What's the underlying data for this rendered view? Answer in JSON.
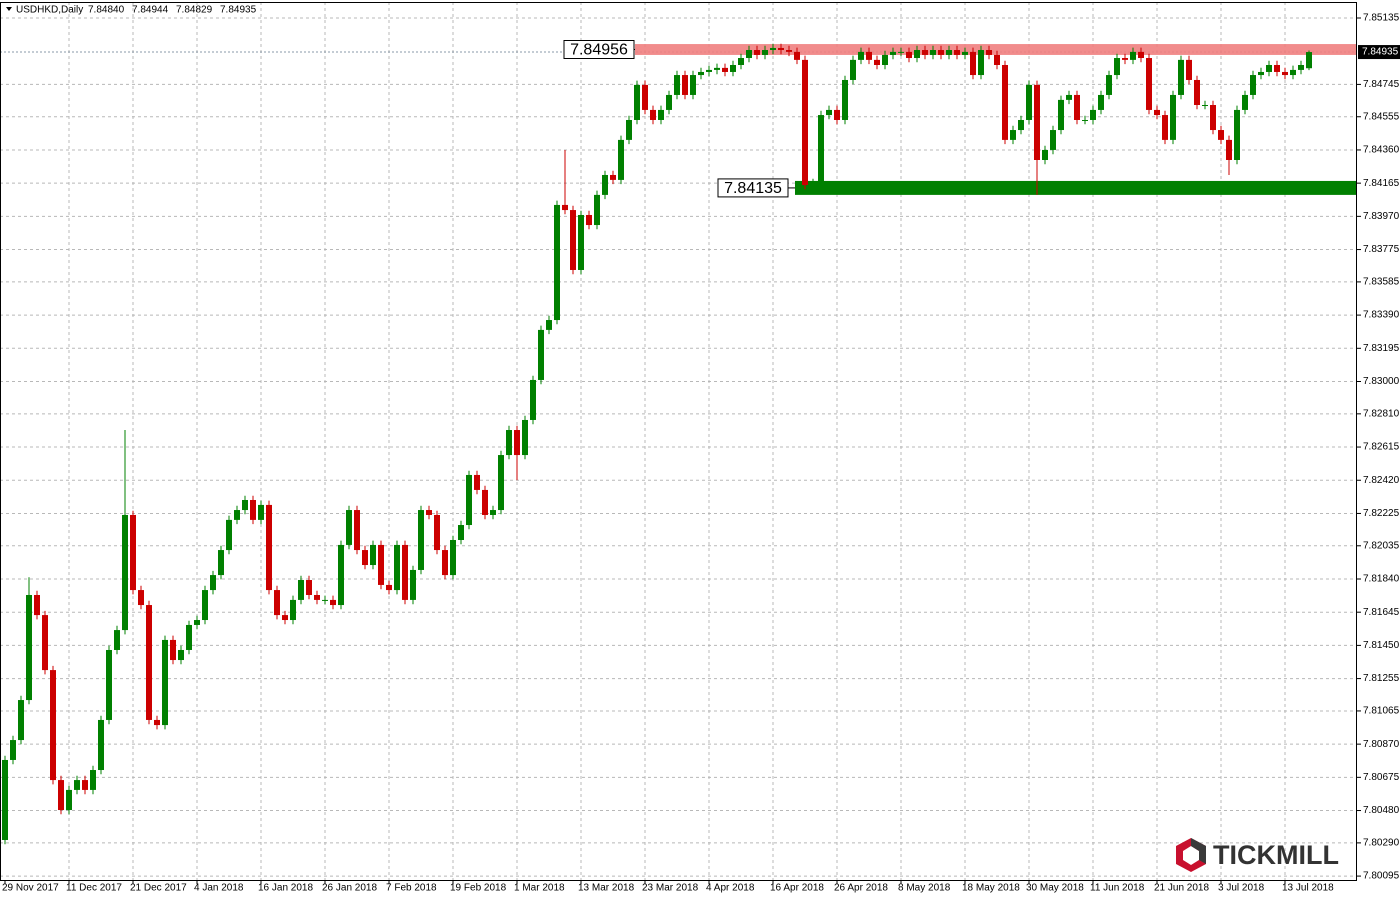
{
  "chart_data": {
    "type": "candlestick",
    "title": "USDHKD,Daily",
    "ohlc_labels": [
      "7.84840",
      "7.84944",
      "7.84829",
      "7.84935"
    ],
    "watermark": "TICKMILL",
    "up_color": "#008000",
    "down_color": "#cc0000",
    "grid": true,
    "ylim": [
      7.80072,
      7.85229
    ],
    "yticks": [
      7.85135,
      7.84745,
      7.84555,
      {
        "value": 7.8436,
        "label": "7.84360"
      },
      7.84165,
      {
        "value": 7.8397,
        "label": "7.83970"
      },
      7.83775,
      7.83585,
      {
        "value": 7.8339,
        "label": "7.83390"
      },
      7.83195,
      {
        "value": 7.83,
        "label": "7.83000"
      },
      {
        "value": 7.8281,
        "label": "7.82810"
      },
      7.82615,
      {
        "value": 7.8242,
        "label": "7.82420"
      },
      7.82225,
      7.82035,
      {
        "value": 7.8184,
        "label": "7.81840"
      },
      7.81645,
      {
        "value": 7.8145,
        "label": "7.81450"
      },
      7.81255,
      7.81065,
      {
        "value": 7.8087,
        "label": "7.80870"
      },
      7.80675,
      {
        "value": 7.8048,
        "label": "7.80480"
      },
      {
        "value": 7.8029,
        "label": "7.80290"
      },
      7.80095
    ],
    "last_price": {
      "value": 7.84935,
      "label": "7.84935"
    },
    "zones": [
      {
        "label": "7.84956",
        "low": 7.84918,
        "high": 7.84982,
        "color": "#f08080"
      },
      {
        "label": "7.84135",
        "low": 7.84096,
        "high": 7.84178,
        "color": "#008000"
      }
    ],
    "categories": [
      "29 Nov 2017",
      null,
      null,
      null,
      null,
      null,
      null,
      null,
      "11 Dec 2017",
      null,
      null,
      null,
      null,
      null,
      null,
      null,
      "21 Dec 2017",
      null,
      null,
      null,
      null,
      null,
      null,
      null,
      "4 Jan 2018",
      null,
      null,
      null,
      null,
      null,
      null,
      null,
      "16 Jan 2018",
      null,
      null,
      null,
      null,
      null,
      null,
      null,
      "26 Jan 2018",
      null,
      null,
      null,
      null,
      null,
      null,
      null,
      "7 Feb 2018",
      null,
      null,
      null,
      null,
      null,
      null,
      null,
      "19 Feb 2018",
      null,
      null,
      null,
      null,
      null,
      null,
      null,
      "1 Mar 2018",
      null,
      null,
      null,
      null,
      null,
      null,
      null,
      "13 Mar 2018",
      null,
      null,
      null,
      null,
      null,
      null,
      null,
      "23 Mar 2018",
      null,
      null,
      null,
      null,
      null,
      null,
      null,
      "4 Apr 2018",
      null,
      null,
      null,
      null,
      null,
      null,
      null,
      "16 Apr 2018",
      null,
      null,
      null,
      null,
      null,
      null,
      null,
      "26 Apr 2018",
      null,
      null,
      null,
      null,
      null,
      null,
      null,
      "8 May 2018",
      null,
      null,
      null,
      null,
      null,
      null,
      null,
      "18 May 2018",
      null,
      null,
      null,
      null,
      null,
      null,
      null,
      "30 May 2018",
      null,
      null,
      null,
      null,
      null,
      null,
      null,
      "11 Jun 2018",
      null,
      null,
      null,
      null,
      null,
      null,
      null,
      "21 Jun 2018",
      null,
      null,
      null,
      null,
      null,
      null,
      null,
      "3 Jul 2018",
      null,
      null,
      null,
      null,
      null,
      null,
      null,
      "13 Jul 2018",
      null,
      null,
      null
    ],
    "open": [
      7.80307,
      7.80777,
      7.80894,
      7.81129,
      7.81746,
      7.81628,
      7.81305,
      7.80659,
      7.80483,
      7.80601,
      7.80659,
      7.80601,
      7.80718,
      7.81012,
      7.81423,
      7.8154,
      7.82216,
      7.81775,
      7.81687,
      7.81012,
      7.80982,
      7.81482,
      7.81364,
      7.81423,
      7.8157,
      7.81599,
      7.81775,
      7.81863,
      7.8201,
      7.82187,
      7.82245,
      7.82304,
      7.82187,
      7.82275,
      7.81775,
      7.81628,
      7.81599,
      7.81717,
      7.81834,
      7.81746,
      7.81717,
      7.81717,
      7.81687,
      7.8204,
      7.82245,
      7.8201,
      7.81922,
      7.8204,
      7.81805,
      7.81775,
      7.8204,
      7.81717,
      7.81893,
      7.82245,
      7.82216,
      7.8201,
      7.81863,
      7.82069,
      7.82157,
      7.82451,
      7.82363,
      7.82216,
      7.82245,
      7.82568,
      7.82715,
      7.82568,
      7.82774,
      7.83009,
      7.83303,
      7.83361,
      7.84037,
      7.84007,
      7.83655,
      7.83978,
      7.83919,
      7.84096,
      7.84213,
      7.84184,
      7.84419,
      7.84536,
      7.84742,
      7.84595,
      7.84536,
      7.84595,
      7.84683,
      7.848,
      7.84683,
      7.848,
      7.84818,
      7.8483,
      7.84842,
      7.84818,
      7.84859,
      7.849,
      7.84947,
      7.84918,
      7.84947,
      7.84959,
      7.84947,
      7.84936,
      7.84889,
      7.84154,
      7.84166,
      7.84565,
      7.84595,
      7.84536,
      7.84771,
      7.84889,
      7.84936,
      7.84889,
      7.84859,
      7.84918,
      7.84936,
      7.84936,
      7.849,
      7.84947,
      7.84918,
      7.84947,
      7.84918,
      7.84947,
      7.84918,
      7.84936,
      7.848,
      7.84947,
      7.84918,
      7.84859,
      7.84419,
      7.84477,
      7.84536,
      7.84742,
      7.84301,
      7.8436,
      7.84477,
      7.84654,
      7.84683,
      7.84536,
      7.84536,
      7.84595,
      7.84683,
      7.848,
      7.849,
      7.84889,
      7.84936,
      7.849,
      7.84595,
      7.84565,
      7.84419,
      7.84683,
      7.84889,
      7.84771,
      7.84624,
      7.84624,
      7.84477,
      7.84419,
      7.84301,
      7.84595,
      7.84683,
      7.848,
      7.84818,
      7.84859,
      7.84818,
      7.848,
      7.8483,
      7.8484
    ],
    "high": [
      7.80802,
      7.80919,
      7.81154,
      7.8185,
      7.81771,
      7.81653,
      7.8133,
      7.80684,
      7.80626,
      7.80684,
      7.80684,
      7.80743,
      7.81037,
      7.81448,
      7.81565,
      7.82715,
      7.82241,
      7.818,
      7.81712,
      7.81037,
      7.81507,
      7.81507,
      7.81448,
      7.81595,
      7.81624,
      7.818,
      7.81888,
      7.82035,
      7.82212,
      7.8227,
      7.82329,
      7.82329,
      7.823,
      7.823,
      7.818,
      7.81653,
      7.81742,
      7.81859,
      7.81859,
      7.81771,
      7.81742,
      7.81742,
      7.82065,
      7.8227,
      7.8227,
      7.82035,
      7.82065,
      7.82065,
      7.8183,
      7.82065,
      7.82065,
      7.81918,
      7.8227,
      7.8227,
      7.82241,
      7.82035,
      7.82094,
      7.82182,
      7.82476,
      7.82476,
      7.82388,
      7.8227,
      7.82593,
      7.8274,
      7.8274,
      7.82799,
      7.83034,
      7.83328,
      7.83386,
      7.84062,
      7.8436,
      7.84032,
      7.84003,
      7.84003,
      7.84121,
      7.84238,
      7.84238,
      7.84444,
      7.84561,
      7.84767,
      7.84767,
      7.8462,
      7.8462,
      7.84708,
      7.84825,
      7.84825,
      7.84825,
      7.84843,
      7.84855,
      7.84867,
      7.84867,
      7.84884,
      7.84925,
      7.84972,
      7.84972,
      7.84972,
      7.84984,
      7.84984,
      7.84972,
      7.84961,
      7.84914,
      7.84191,
      7.8459,
      7.8462,
      7.8462,
      7.84796,
      7.84914,
      7.84961,
      7.84961,
      7.84914,
      7.84943,
      7.84961,
      7.84961,
      7.84961,
      7.84972,
      7.84972,
      7.84972,
      7.84972,
      7.84972,
      7.84972,
      7.84961,
      7.84961,
      7.84972,
      7.84972,
      7.84943,
      7.84884,
      7.84502,
      7.84561,
      7.84767,
      7.84767,
      7.84385,
      7.84502,
      7.84679,
      7.84708,
      7.84708,
      7.84561,
      7.8462,
      7.84708,
      7.84825,
      7.84925,
      7.84925,
      7.84961,
      7.84961,
      7.84925,
      7.8462,
      7.8459,
      7.84708,
      7.84914,
      7.84914,
      7.84796,
      7.84649,
      7.84649,
      7.84502,
      7.84444,
      7.8462,
      7.84708,
      7.84825,
      7.84843,
      7.84884,
      7.84884,
      7.84843,
      7.84855,
      7.84884,
      7.84944
    ],
    "low": [
      7.80282,
      7.80752,
      7.80869,
      7.81104,
      7.81603,
      7.8128,
      7.80634,
      7.80458,
      7.80458,
      7.80576,
      7.80576,
      7.80576,
      7.80693,
      7.80987,
      7.81398,
      7.81515,
      7.8175,
      7.81662,
      7.80987,
      7.80957,
      7.80957,
      7.81339,
      7.81339,
      7.81398,
      7.81545,
      7.81574,
      7.8175,
      7.81838,
      7.81985,
      7.82162,
      7.8222,
      7.82162,
      7.82162,
      7.8175,
      7.81603,
      7.81574,
      7.81574,
      7.81692,
      7.81721,
      7.81692,
      7.81692,
      7.81662,
      7.81662,
      7.82015,
      7.81985,
      7.81897,
      7.81897,
      7.8178,
      7.8175,
      7.8175,
      7.81692,
      7.81692,
      7.81868,
      7.82191,
      7.81985,
      7.81838,
      7.81838,
      7.82044,
      7.82132,
      7.82338,
      7.82191,
      7.82191,
      7.8222,
      7.82543,
      7.82421,
      7.82543,
      7.82749,
      7.82984,
      7.83278,
      7.83336,
      7.83982,
      7.8363,
      7.8363,
      7.83894,
      7.83894,
      7.84071,
      7.84159,
      7.84159,
      7.84394,
      7.84511,
      7.8457,
      7.84511,
      7.84511,
      7.8457,
      7.84658,
      7.84658,
      7.84658,
      7.84775,
      7.84793,
      7.84805,
      7.84793,
      7.84793,
      7.84834,
      7.84875,
      7.84893,
      7.84893,
      7.84922,
      7.84922,
      7.84911,
      7.84864,
      7.84129,
      7.84129,
      7.84141,
      7.8454,
      7.84511,
      7.84511,
      7.84746,
      7.84864,
      7.84864,
      7.84834,
      7.84834,
      7.84893,
      7.84911,
      7.84875,
      7.84875,
      7.84893,
      7.84893,
      7.84893,
      7.84893,
      7.84893,
      7.84893,
      7.84775,
      7.84775,
      7.84893,
      7.84834,
      7.84394,
      7.84394,
      7.84452,
      7.84511,
      7.84096,
      7.84276,
      7.84335,
      7.84452,
      7.84629,
      7.84511,
      7.84511,
      7.84511,
      7.8457,
      7.84658,
      7.84775,
      7.84864,
      7.84864,
      7.84875,
      7.8457,
      7.8454,
      7.84394,
      7.84394,
      7.84658,
      7.84746,
      7.84599,
      7.84599,
      7.84452,
      7.84394,
      7.84213,
      7.84276,
      7.8457,
      7.84658,
      7.84775,
      7.84793,
      7.84793,
      7.84775,
      7.84775,
      7.84805,
      7.84829
    ],
    "close": [
      7.80777,
      7.80894,
      7.81129,
      7.81746,
      7.81628,
      7.81305,
      7.80659,
      7.80483,
      7.80601,
      7.80659,
      7.80601,
      7.80718,
      7.81012,
      7.81423,
      7.8154,
      7.82216,
      7.81775,
      7.81687,
      7.81012,
      7.80982,
      7.81482,
      7.81364,
      7.81423,
      7.8157,
      7.81599,
      7.81775,
      7.81863,
      7.8201,
      7.82187,
      7.82245,
      7.82304,
      7.82187,
      7.82275,
      7.81775,
      7.81628,
      7.81599,
      7.81717,
      7.81834,
      7.81746,
      7.81717,
      7.81717,
      7.81687,
      7.8204,
      7.82245,
      7.8201,
      7.81922,
      7.8204,
      7.81805,
      7.81775,
      7.8204,
      7.81717,
      7.81893,
      7.82245,
      7.82216,
      7.8201,
      7.81863,
      7.82069,
      7.82157,
      7.82451,
      7.82363,
      7.82216,
      7.82245,
      7.82568,
      7.82715,
      7.82568,
      7.82774,
      7.83009,
      7.83303,
      7.83361,
      7.84037,
      7.84007,
      7.83655,
      7.83978,
      7.83919,
      7.84096,
      7.84213,
      7.84184,
      7.84419,
      7.84536,
      7.84742,
      7.84595,
      7.84536,
      7.84595,
      7.84683,
      7.848,
      7.84683,
      7.848,
      7.84818,
      7.8483,
      7.84842,
      7.84818,
      7.84859,
      7.849,
      7.84947,
      7.84918,
      7.84947,
      7.84959,
      7.84947,
      7.84936,
      7.84889,
      7.84154,
      7.84166,
      7.84565,
      7.84595,
      7.84536,
      7.84771,
      7.84889,
      7.84936,
      7.84889,
      7.84859,
      7.84918,
      7.84936,
      7.84936,
      7.849,
      7.84947,
      7.84918,
      7.84947,
      7.84918,
      7.84947,
      7.84918,
      7.84936,
      7.848,
      7.84947,
      7.84918,
      7.84859,
      7.84419,
      7.84477,
      7.84536,
      7.84742,
      7.84301,
      7.8436,
      7.84477,
      7.84654,
      7.84683,
      7.84536,
      7.84536,
      7.84595,
      7.84683,
      7.848,
      7.849,
      7.84889,
      7.84936,
      7.849,
      7.84595,
      7.84565,
      7.84419,
      7.84683,
      7.84889,
      7.84771,
      7.84624,
      7.84624,
      7.84477,
      7.84419,
      7.84301,
      7.84595,
      7.84683,
      7.848,
      7.84818,
      7.84859,
      7.84818,
      7.848,
      7.8483,
      7.84859,
      7.84935
    ]
  }
}
